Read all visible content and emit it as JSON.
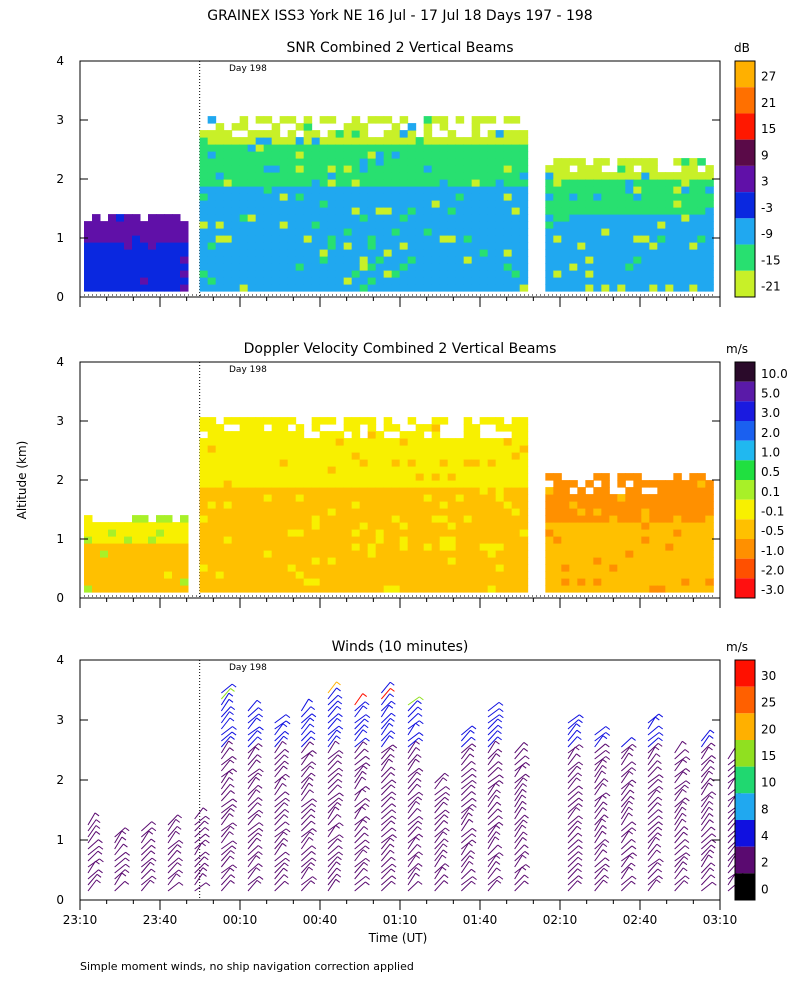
{
  "figure_title": "GRAINEX ISS3 York NE  16 Jul - 17 Jul 18 Days 197 - 198",
  "ylabel": "Altitude (km)",
  "xlabel": "Time (UT)",
  "footnote": "Simple moment winds, no ship navigation correction applied",
  "day_marker": "Day 198",
  "x_ticks": [
    "23:10",
    "23:40",
    "00:10",
    "00:40",
    "01:10",
    "01:40",
    "02:10",
    "02:40",
    "03:10"
  ],
  "y_ticks": [
    "0",
    "1",
    "2",
    "3",
    "4"
  ],
  "chart_data": [
    {
      "type": "heatmap",
      "title": "SNR Combined 2 Vertical Beams",
      "unit": "dB",
      "ylim": [
        0,
        4
      ],
      "xlim": [
        "23:10",
        "03:10"
      ],
      "day_boundary": "23:50",
      "colorbar_ticks": [
        "27",
        "21",
        "15",
        "9",
        "3",
        "-3",
        "-9",
        "-15",
        "-21"
      ],
      "colorbar_colors": [
        "#ffb000",
        "#ff7000",
        "#ff1800",
        "#5a0a48",
        "#6010a8",
        "#0a28e0",
        "#20a8f0",
        "#28e070",
        "#c8f028"
      ],
      "data_gap": [
        "01:55",
        "02:03"
      ],
      "layers": [
        {
          "from": "23:10",
          "to": "23:50",
          "top_km": 1.4,
          "dominant": [
            "-3",
            "3"
          ]
        },
        {
          "from": "23:50",
          "to": "01:55",
          "top_km": 3.0,
          "dominant": [
            "-9",
            "-15",
            "-21"
          ]
        },
        {
          "from": "02:03",
          "to": "03:10",
          "top_km": 2.3,
          "dominant": [
            "-9",
            "-15",
            "-21"
          ]
        }
      ]
    },
    {
      "type": "heatmap",
      "title": "Doppler Velocity Combined 2 Vertical Beams",
      "unit": "m/s",
      "ylim": [
        0,
        4
      ],
      "colorbar_ticks": [
        "10.0",
        "5.0",
        "3.0",
        "2.0",
        "1.0",
        "0.5",
        "0.1",
        "-0.1",
        "-0.5",
        "-1.0",
        "-2.0",
        "-3.0"
      ],
      "colorbar_colors": [
        "#2a0a2a",
        "#5a1aa8",
        "#1a1ae0",
        "#1a60f0",
        "#20b8f0",
        "#20e040",
        "#a8f028",
        "#f8f000",
        "#ffc000",
        "#ff9000",
        "#ff5000",
        "#ff1010"
      ],
      "layers": [
        {
          "from": "23:10",
          "to": "23:50",
          "top_km": 1.4,
          "dominant": [
            "-0.5",
            "-0.1",
            "0.1"
          ]
        },
        {
          "from": "23:50",
          "to": "01:55",
          "top_km": 3.0,
          "dominant": [
            "-0.5",
            "-0.1"
          ]
        },
        {
          "from": "02:03",
          "to": "03:10",
          "top_km": 2.0,
          "dominant": [
            "-0.5",
            "-1.0"
          ]
        }
      ]
    },
    {
      "type": "scatter",
      "title": "Winds (10 minutes)",
      "unit": "m/s",
      "ylim": [
        0,
        4
      ],
      "colorbar_ticks": [
        "30",
        "25",
        "20",
        "15",
        "10",
        "8",
        "4",
        "2",
        "0"
      ],
      "colorbar_colors": [
        "#ff1000",
        "#ff6000",
        "#ffb000",
        "#90e020",
        "#20d870",
        "#20a8f0",
        "#1010e0",
        "#5a0a70",
        "#000000"
      ],
      "profile_times": [
        "23:10",
        "23:20",
        "23:30",
        "23:40",
        "23:50",
        "00:00",
        "00:10",
        "00:20",
        "00:30",
        "00:40",
        "00:50",
        "01:00",
        "01:10",
        "01:20",
        "01:30",
        "01:40",
        "01:50",
        "02:10",
        "02:20",
        "02:30",
        "02:40",
        "02:50",
        "03:00",
        "03:10"
      ],
      "profile_top_km": [
        1.3,
        1.1,
        1.2,
        1.3,
        1.4,
        3.5,
        3.2,
        3.0,
        3.2,
        3.5,
        3.3,
        3.5,
        3.3,
        2.0,
        2.8,
        3.2,
        2.5,
        3.0,
        2.8,
        2.6,
        3.0,
        2.5,
        2.7,
        2.4
      ]
    }
  ]
}
